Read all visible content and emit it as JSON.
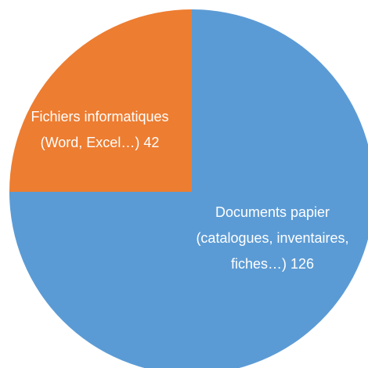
{
  "chart_data": {
    "type": "pie",
    "categories": [
      "Documents papier (catalogues, inventaires, fiches…)",
      "Fichiers informatiques (Word, Excel…)"
    ],
    "values": [
      126,
      42
    ],
    "colors": [
      "#5b9bd5",
      "#ed7d31"
    ]
  }
}
